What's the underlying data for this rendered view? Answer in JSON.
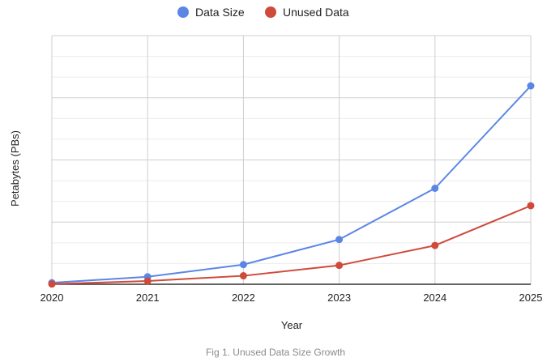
{
  "chart_data": {
    "type": "line",
    "x": [
      "2020",
      "2021",
      "2022",
      "2023",
      "2024",
      "2025"
    ],
    "series": [
      {
        "name": "Data Size",
        "color": "#5b86e5",
        "values": [
          6,
          30,
          79,
          180,
          386,
          798
        ]
      },
      {
        "name": "Unused Data",
        "color": "#cf4a3b",
        "values": [
          1,
          13,
          34,
          76,
          156,
          316
        ]
      }
    ],
    "xlabel": "Year",
    "ylabel": "Petabytes (PBs)",
    "ylim": [
      0,
      1000
    ],
    "y_tick_labels_shown": false,
    "grid": true,
    "legend_position": "top-center"
  },
  "caption": "Fig 1. Unused Data Size Growth"
}
